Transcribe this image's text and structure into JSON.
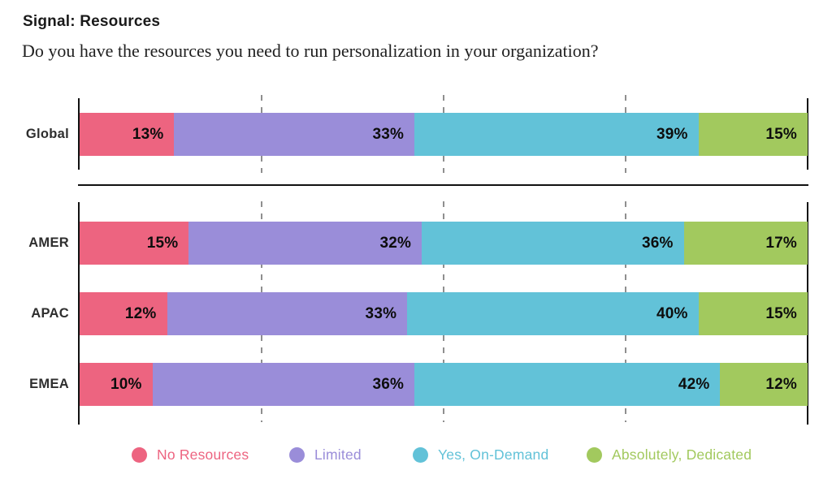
{
  "header": {
    "title": "Signal: Resources",
    "subtitle": "Do you have the resources you need to run personalization in your organization?"
  },
  "chart_data": {
    "type": "bar",
    "variant": "horizontal-stacked",
    "title": "Signal: Resources",
    "subtitle": "Do you have the resources you need to run personalization in your organization?",
    "unit": "%",
    "xlim": [
      0,
      100
    ],
    "gridlines_percent": [
      25,
      50,
      75
    ],
    "grid": "dashed-vertical",
    "value_label_format": "{v}%",
    "series_names": [
      "No Resources",
      "Limited",
      "Yes, On-Demand",
      "Absolutely, Dedicated"
    ],
    "series_colors": [
      "#ED6480",
      "#9A8DD9",
      "#62C2D8",
      "#A2C95E"
    ],
    "groups": [
      {
        "rows": [
          {
            "label": "Global",
            "values": [
              13,
              33,
              39,
              15
            ]
          }
        ]
      },
      {
        "rows": [
          {
            "label": "AMER",
            "values": [
              15,
              32,
              36,
              17
            ]
          },
          {
            "label": "APAC",
            "values": [
              12,
              33,
              40,
              15
            ]
          },
          {
            "label": "EMEA",
            "values": [
              10,
              36,
              42,
              12
            ]
          }
        ]
      }
    ],
    "legend": {
      "position": "bottom",
      "entries": [
        {
          "label": "No Resources",
          "color": "#ED6480"
        },
        {
          "label": "Limited",
          "color": "#9A8DD9"
        },
        {
          "label": "Yes, On-Demand",
          "color": "#62C2D8"
        },
        {
          "label": "Absolutely, Dedicated",
          "color": "#A2C95E"
        }
      ]
    }
  }
}
